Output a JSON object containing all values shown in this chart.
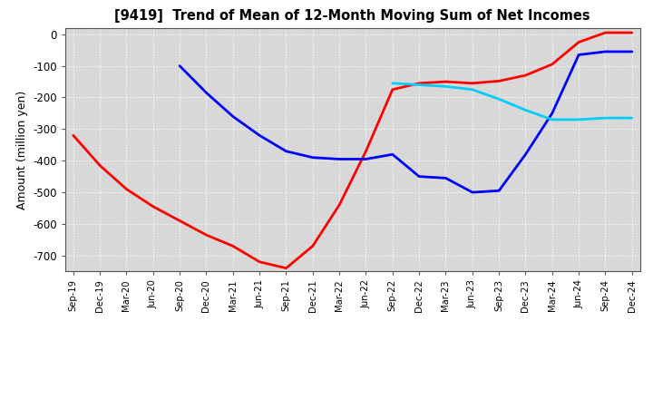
{
  "title": "[9419]  Trend of Mean of 12-Month Moving Sum of Net Incomes",
  "ylabel": "Amount (million yen)",
  "ylim": [
    -750,
    20
  ],
  "yticks": [
    0,
    -100,
    -200,
    -300,
    -400,
    -500,
    -600,
    -700
  ],
  "background_color": "#ffffff",
  "plot_bg_color": "#d8d8d8",
  "grid_color": "#ffffff",
  "series": {
    "3years": {
      "color": "#ff0000",
      "x": [
        0,
        1,
        2,
        3,
        4,
        5,
        6,
        7,
        8,
        9,
        10,
        11,
        12,
        13,
        14,
        15,
        16,
        17,
        18,
        19,
        20,
        21
      ],
      "y": [
        -320,
        -415,
        -490,
        -545,
        -590,
        -635,
        -670,
        -720,
        -740,
        -670,
        -540,
        -370,
        -175,
        -155,
        -150,
        -155,
        -148,
        -130,
        -95,
        -25,
        5,
        5
      ]
    },
    "5years": {
      "color": "#0000ff",
      "x": [
        4,
        5,
        6,
        7,
        8,
        9,
        10,
        11,
        12,
        13,
        14,
        15,
        16,
        17,
        18,
        19,
        20,
        21
      ],
      "y": [
        -100,
        -185,
        -260,
        -320,
        -370,
        -390,
        -395,
        -395,
        -380,
        -450,
        -455,
        -500,
        -495,
        -380,
        -250,
        -65,
        -55,
        -55
      ]
    },
    "7years": {
      "color": "#00ccff",
      "x": [
        12,
        13,
        14,
        15,
        16,
        17,
        18,
        19,
        20,
        21
      ],
      "y": [
        -155,
        -160,
        -165,
        -175,
        -205,
        -240,
        -270,
        -270,
        -265,
        -265
      ]
    },
    "10years": {
      "color": "#008800",
      "x": [],
      "y": []
    }
  },
  "x_labels": [
    "Sep-19",
    "Dec-19",
    "Mar-20",
    "Jun-20",
    "Sep-20",
    "Dec-20",
    "Mar-21",
    "Jun-21",
    "Sep-21",
    "Dec-21",
    "Mar-22",
    "Jun-22",
    "Sep-22",
    "Dec-22",
    "Mar-23",
    "Jun-23",
    "Sep-23",
    "Dec-23",
    "Mar-24",
    "Jun-24",
    "Sep-24",
    "Dec-24"
  ]
}
